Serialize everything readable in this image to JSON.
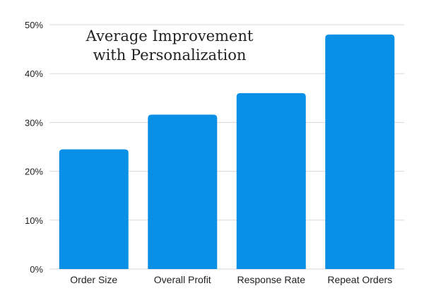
{
  "chart_data": {
    "type": "bar",
    "title_lines": [
      "Average Improvement",
      "with Personalization"
    ],
    "categories": [
      "Order Size",
      "Overall Profit",
      "Response Rate",
      "Repeat Orders"
    ],
    "values": [
      24.5,
      31.6,
      36,
      48
    ],
    "ylim": [
      0,
      50
    ],
    "yticks": [
      "0%",
      "10%",
      "20%",
      "30%",
      "40%",
      "50%"
    ],
    "ytick_values": [
      0,
      10,
      20,
      30,
      40,
      50
    ],
    "xlabel": "",
    "ylabel": "",
    "grid": true,
    "legend": "none"
  },
  "colors": {
    "bar": "#0a8fe6",
    "grid": "#d9d9d9",
    "tick_text": "#222222"
  }
}
